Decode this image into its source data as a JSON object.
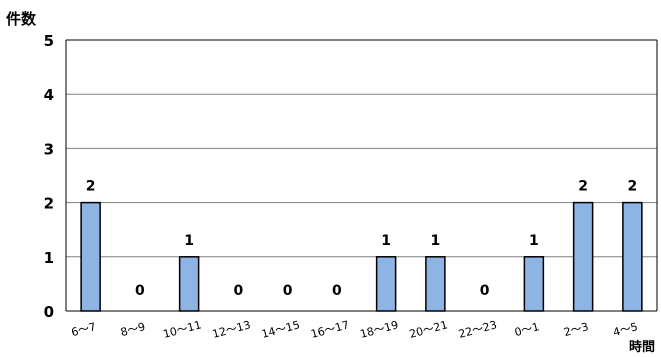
{
  "chart_data": {
    "type": "bar",
    "y_unit_label": "件数",
    "x_unit_label": "時間",
    "categories": [
      "6～7",
      "8～9",
      "10～11",
      "12～13",
      "14～15",
      "16～17",
      "18～19",
      "20～21",
      "22～23",
      "0～1",
      "2～3",
      "4～5"
    ],
    "values": [
      2,
      0,
      1,
      0,
      0,
      0,
      1,
      1,
      0,
      1,
      2,
      2
    ],
    "yticks": [
      0,
      1,
      2,
      3,
      4,
      5
    ],
    "ylim": [
      0,
      5
    ],
    "grid": true,
    "legend": "none",
    "bar_color": "#8db4e2",
    "bar_border_color": "#000000",
    "gridline_color": "#808080"
  }
}
